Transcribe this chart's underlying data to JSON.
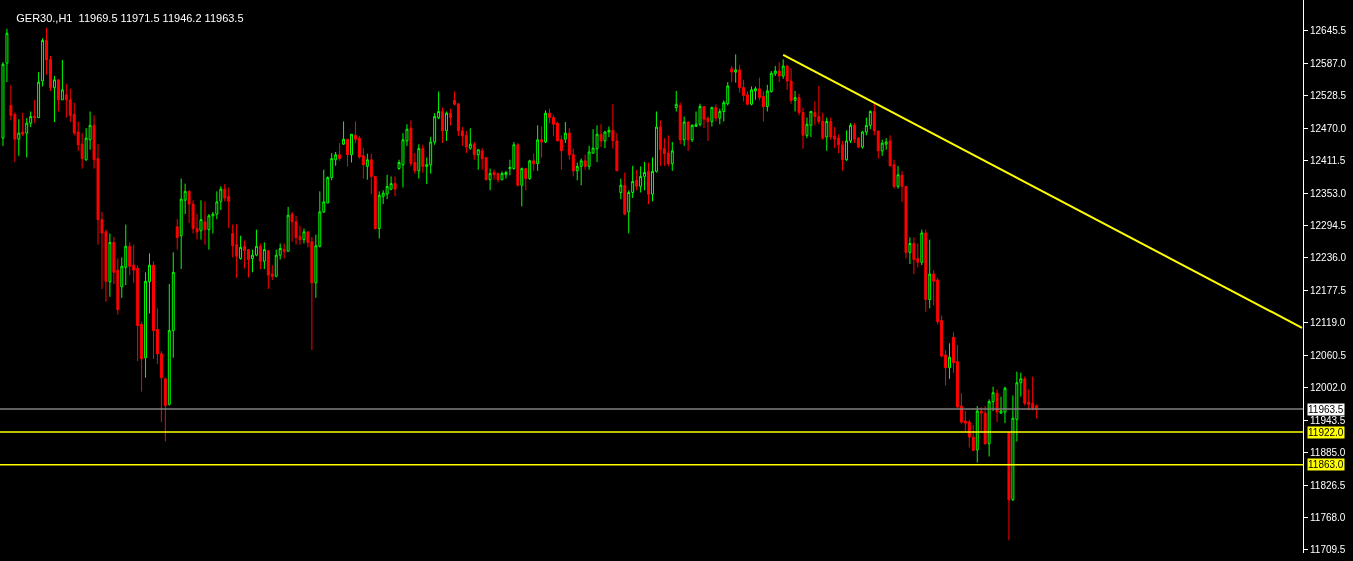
{
  "chart_data": {
    "type": "candlestick",
    "title": "GER30.,H1  11969.5 11971.5 11946.2 11963.5",
    "categories": [
      null,
      null,
      null,
      null,
      null,
      null,
      null,
      null,
      null,
      null,
      null,
      null,
      null,
      null,
      null,
      null,
      null,
      null,
      null,
      null,
      null,
      null,
      null,
      null,
      null,
      null,
      null,
      null,
      null,
      null,
      null,
      null,
      null,
      null,
      null,
      null,
      null,
      null,
      null,
      null,
      null,
      null,
      null,
      null,
      null,
      null,
      null,
      null,
      null,
      null,
      null,
      null,
      null,
      null,
      null,
      null,
      null,
      null,
      null,
      null,
      null,
      null,
      null,
      null,
      null,
      null,
      null,
      null,
      null,
      null,
      null,
      null,
      null,
      null,
      null,
      null,
      null,
      null,
      null,
      null,
      null,
      null,
      null,
      null,
      null,
      null,
      null,
      null,
      null,
      null,
      null,
      null,
      null,
      null,
      null,
      null,
      null,
      null,
      null,
      null,
      null,
      null,
      null,
      null,
      null,
      null,
      null,
      null,
      null,
      null,
      null,
      null,
      null,
      null,
      null,
      null,
      null,
      null,
      null,
      null,
      null,
      null,
      null,
      null,
      null,
      null,
      null,
      null,
      null,
      null,
      null,
      null,
      null,
      null,
      null,
      null,
      null,
      null,
      null,
      null,
      null,
      null,
      null,
      null,
      null,
      null,
      null,
      null,
      null,
      null,
      null,
      null,
      null,
      null,
      null,
      null,
      null,
      null,
      null,
      null,
      null,
      null,
      null,
      null,
      null,
      null,
      null,
      null,
      null,
      null,
      null,
      null,
      null,
      null,
      null,
      null,
      null,
      null,
      null,
      null,
      null,
      null,
      null,
      null,
      null,
      null,
      null,
      null,
      null,
      null,
      null,
      null,
      null,
      null,
      null,
      null,
      null,
      null,
      null,
      null,
      null,
      null,
      null,
      null,
      null,
      null,
      null,
      null,
      null,
      null,
      null,
      null,
      null,
      null,
      null,
      null,
      null,
      null,
      null,
      null,
      null,
      null,
      null,
      null,
      null,
      null,
      null,
      null,
      null,
      null,
      null,
      null,
      null,
      null,
      null,
      null,
      null,
      null,
      null,
      null,
      null,
      null,
      null,
      null,
      null,
      null,
      null,
      null,
      null,
      null,
      null,
      null,
      null,
      null,
      null,
      null,
      null,
      null,
      null,
      null,
      null,
      null,
      null,
      null,
      null,
      null,
      null,
      null,
      null,
      null,
      null,
      null,
      null,
      null,
      null,
      null,
      null,
      null,
      null,
      null,
      null,
      null,
      null,
      null,
      null,
      null,
      null,
      null,
      null,
      null,
      null,
      null,
      null,
      null,
      null,
      null,
      null,
      null,
      null,
      null,
      null,
      null,
      null,
      null,
      null,
      null,
      null,
      null,
      null,
      null,
      null,
      null,
      null,
      null,
      null,
      null,
      null,
      null,
      null,
      null,
      null,
      null,
      null,
      null,
      null,
      null,
      null,
      null,
      null
    ],
    "colors": [
      "#00ff00",
      "#ff0000"
    ],
    "series": [
      {
        "ohlc": [
          [
            12452,
            12589,
            12438,
            12585
          ],
          [
            12587,
            12649,
            12553,
            12641
          ],
          [
            12511,
            12548,
            12484,
            12493
          ],
          [
            12495,
            12498,
            12409,
            12450
          ],
          [
            12450,
            12486,
            12420,
            12461
          ],
          [
            12463,
            12498,
            12456,
            12459
          ],
          [
            12461,
            12488,
            12417,
            12479
          ],
          [
            12479,
            12500,
            12472,
            12491
          ],
          [
            12491,
            12521,
            12479,
            12489
          ],
          [
            12489,
            12571,
            12489,
            12553
          ],
          [
            12555,
            12632,
            12545,
            12628
          ],
          [
            12628,
            12651,
            12566,
            12593
          ],
          [
            12594,
            12600,
            12537,
            12543
          ],
          [
            12543,
            12564,
            12481,
            12557
          ],
          [
            12557,
            12557,
            12500,
            12521
          ],
          [
            12521,
            12593,
            12521,
            12539
          ],
          [
            12530,
            12550,
            12489,
            12521
          ],
          [
            12521,
            12541,
            12481,
            12493
          ],
          [
            12495,
            12516,
            12457,
            12461
          ],
          [
            12463,
            12482,
            12429,
            12440
          ],
          [
            12441,
            12461,
            12397,
            12415
          ],
          [
            12413,
            12470,
            12411,
            12452
          ],
          [
            12449,
            12500,
            12431,
            12475
          ],
          [
            12475,
            12493,
            12397,
            12413
          ],
          [
            12415,
            12441,
            12260,
            12305
          ],
          [
            12305,
            12319,
            12180,
            12281
          ],
          [
            12283,
            12287,
            12157,
            12194
          ],
          [
            12193,
            12280,
            12166,
            12264
          ],
          [
            12264,
            12274,
            12189,
            12210
          ],
          [
            12214,
            12235,
            12134,
            12143
          ],
          [
            12184,
            12237,
            12164,
            12221
          ],
          [
            12219,
            12296,
            12187,
            12257
          ],
          [
            12257,
            12264,
            12205,
            12221
          ],
          [
            12223,
            12260,
            12191,
            12214
          ],
          [
            12217,
            12223,
            12050,
            12114
          ],
          [
            12116,
            12121,
            11995,
            12054
          ],
          [
            12056,
            12210,
            12020,
            12194
          ],
          [
            12193,
            12244,
            12136,
            12223
          ],
          [
            12223,
            12230,
            12054,
            12105
          ],
          [
            12107,
            12145,
            12045,
            12063
          ],
          [
            12063,
            12068,
            11940,
            12020
          ],
          [
            12018,
            12020,
            11905,
            11970
          ],
          [
            11972,
            12189,
            11970,
            12105
          ],
          [
            12105,
            12246,
            12056,
            12210
          ],
          [
            12292,
            12306,
            12251,
            12273
          ],
          [
            12276,
            12379,
            12216,
            12342
          ],
          [
            12340,
            12370,
            12315,
            12356
          ],
          [
            12356,
            12358,
            12299,
            12333
          ],
          [
            12333,
            12340,
            12280,
            12289
          ],
          [
            12289,
            12315,
            12269,
            12283
          ],
          [
            12285,
            12340,
            12269,
            12305
          ],
          [
            12301,
            12338,
            12260,
            12287
          ],
          [
            12287,
            12315,
            12251,
            12312
          ],
          [
            12312,
            12319,
            12280,
            12315
          ],
          [
            12315,
            12356,
            12306,
            12337
          ],
          [
            12338,
            12365,
            12322,
            12360
          ],
          [
            12360,
            12369,
            12338,
            12344
          ],
          [
            12347,
            12363,
            12290,
            12338
          ],
          [
            12280,
            12296,
            12237,
            12258
          ],
          [
            12260,
            12297,
            12200,
            12239
          ],
          [
            12235,
            12276,
            12233,
            12255
          ],
          [
            12257,
            12267,
            12217,
            12249
          ],
          [
            12251,
            12251,
            12201,
            12233
          ],
          [
            12235,
            12251,
            12210,
            12241
          ],
          [
            12241,
            12287,
            12239,
            12257
          ],
          [
            12257,
            12262,
            12216,
            12230
          ],
          [
            12230,
            12264,
            12216,
            12251
          ],
          [
            12249,
            12249,
            12180,
            12205
          ],
          [
            12207,
            12223,
            12196,
            12203
          ],
          [
            12203,
            12251,
            12201,
            12241
          ],
          [
            12241,
            12262,
            12233,
            12253
          ],
          [
            12251,
            12262,
            12235,
            12248
          ],
          [
            12248,
            12328,
            12248,
            12313
          ],
          [
            12315,
            12319,
            12265,
            12301
          ],
          [
            12301,
            12312,
            12260,
            12273
          ],
          [
            12274,
            12294,
            12260,
            12269
          ],
          [
            12269,
            12289,
            12262,
            12283
          ],
          [
            12283,
            12283,
            12255,
            12264
          ],
          [
            12265,
            12274,
            12070,
            12191
          ],
          [
            12191,
            12278,
            12164,
            12258
          ],
          [
            12257,
            12356,
            12255,
            12319
          ],
          [
            12319,
            12395,
            12317,
            12337
          ],
          [
            12335,
            12383,
            12335,
            12381
          ],
          [
            12381,
            12425,
            12376,
            12415
          ],
          [
            12413,
            12427,
            12402,
            12422
          ],
          [
            12422,
            12443,
            12411,
            12415
          ],
          [
            12441,
            12482,
            12440,
            12450
          ],
          [
            12450,
            12450,
            12401,
            12422
          ],
          [
            12422,
            12459,
            12408,
            12459
          ],
          [
            12457,
            12482,
            12443,
            12450
          ],
          [
            12452,
            12456,
            12415,
            12418
          ],
          [
            12420,
            12434,
            12379,
            12404
          ],
          [
            12401,
            12424,
            12377,
            12413
          ],
          [
            12413,
            12424,
            12351,
            12383
          ],
          [
            12383,
            12383,
            12287,
            12289
          ],
          [
            12289,
            12356,
            12271,
            12349
          ],
          [
            12347,
            12358,
            12333,
            12353
          ],
          [
            12351,
            12386,
            12342,
            12365
          ],
          [
            12360,
            12383,
            12358,
            12370
          ],
          [
            12370,
            12383,
            12347,
            12360
          ],
          [
            12397,
            12413,
            12395,
            12408
          ],
          [
            12404,
            12461,
            12363,
            12449
          ],
          [
            12447,
            12477,
            12438,
            12468
          ],
          [
            12470,
            12484,
            12401,
            12406
          ],
          [
            12408,
            12425,
            12388,
            12393
          ],
          [
            12393,
            12441,
            12379,
            12433
          ],
          [
            12433,
            12440,
            12390,
            12401
          ],
          [
            12401,
            12417,
            12369,
            12404
          ],
          [
            12404,
            12454,
            12388,
            12445
          ],
          [
            12445,
            12497,
            12440,
            12491
          ],
          [
            12489,
            12536,
            12486,
            12500
          ],
          [
            12500,
            12507,
            12443,
            12465
          ],
          [
            12465,
            12500,
            12447,
            12497
          ],
          [
            12497,
            12505,
            12475,
            12489
          ],
          [
            12520,
            12536,
            12511,
            12513
          ],
          [
            12514,
            12514,
            12456,
            12465
          ],
          [
            12465,
            12472,
            12438,
            12456
          ],
          [
            12457,
            12465,
            12425,
            12436
          ],
          [
            12434,
            12470,
            12431,
            12441
          ],
          [
            12441,
            12445,
            12413,
            12422
          ],
          [
            12422,
            12431,
            12395,
            12431
          ],
          [
            12429,
            12434,
            12395,
            12415
          ],
          [
            12417,
            12417,
            12376,
            12377
          ],
          [
            12377,
            12397,
            12358,
            12388
          ],
          [
            12390,
            12395,
            12377,
            12386
          ],
          [
            12388,
            12390,
            12372,
            12377
          ],
          [
            12377,
            12392,
            12376,
            12388
          ],
          [
            12386,
            12393,
            12379,
            12390
          ],
          [
            12397,
            12413,
            12385,
            12399
          ],
          [
            12397,
            12445,
            12395,
            12440
          ],
          [
            12440,
            12443,
            12365,
            12367
          ],
          [
            12367,
            12399,
            12329,
            12397
          ],
          [
            12397,
            12397,
            12358,
            12379
          ],
          [
            12379,
            12413,
            12377,
            12411
          ],
          [
            12411,
            12424,
            12393,
            12406
          ],
          [
            12406,
            12475,
            12393,
            12449
          ],
          [
            12449,
            12473,
            12417,
            12445
          ],
          [
            12445,
            12502,
            12443,
            12497
          ],
          [
            12497,
            12505,
            12479,
            12489
          ],
          [
            12489,
            12493,
            12456,
            12477
          ],
          [
            12479,
            12481,
            12447,
            12447
          ],
          [
            12449,
            12457,
            12395,
            12429
          ],
          [
            12450,
            12481,
            12443,
            12461
          ],
          [
            12461,
            12470,
            12413,
            12422
          ],
          [
            12422,
            12433,
            12383,
            12393
          ],
          [
            12393,
            12408,
            12376,
            12401
          ],
          [
            12401,
            12415,
            12367,
            12411
          ],
          [
            12411,
            12422,
            12395,
            12401
          ],
          [
            12401,
            12438,
            12395,
            12427
          ],
          [
            12425,
            12468,
            12424,
            12434
          ],
          [
            12433,
            12475,
            12409,
            12459
          ],
          [
            12459,
            12477,
            12436,
            12447
          ],
          [
            12447,
            12465,
            12434,
            12463
          ],
          [
            12463,
            12473,
            12454,
            12466
          ],
          [
            12466,
            12513,
            12433,
            12447
          ],
          [
            12447,
            12461,
            12393,
            12393
          ],
          [
            12354,
            12379,
            12342,
            12367
          ],
          [
            12367,
            12390,
            12313,
            12315
          ],
          [
            12319,
            12358,
            12280,
            12354
          ],
          [
            12354,
            12402,
            12344,
            12374
          ],
          [
            12376,
            12395,
            12358,
            12365
          ],
          [
            12365,
            12401,
            12354,
            12383
          ],
          [
            12383,
            12409,
            12358,
            12390
          ],
          [
            12392,
            12408,
            12333,
            12351
          ],
          [
            12351,
            12417,
            12338,
            12392
          ],
          [
            12392,
            12500,
            12390,
            12472
          ],
          [
            12472,
            12484,
            12402,
            12431
          ],
          [
            12433,
            12452,
            12402,
            12424
          ],
          [
            12425,
            12457,
            12401,
            12406
          ],
          [
            12406,
            12445,
            12393,
            12429
          ],
          [
            12507,
            12537,
            12500,
            12513
          ],
          [
            12511,
            12516,
            12441,
            12449
          ],
          [
            12449,
            12491,
            12438,
            12481
          ],
          [
            12481,
            12482,
            12429,
            12449
          ],
          [
            12449,
            12477,
            12445,
            12475
          ],
          [
            12473,
            12500,
            12473,
            12477
          ],
          [
            12477,
            12514,
            12473,
            12509
          ],
          [
            12509,
            12509,
            12470,
            12486
          ],
          [
            12488,
            12491,
            12447,
            12482
          ],
          [
            12482,
            12509,
            12473,
            12507
          ],
          [
            12507,
            12513,
            12482,
            12488
          ],
          [
            12488,
            12505,
            12477,
            12500
          ],
          [
            12500,
            12520,
            12482,
            12516
          ],
          [
            12514,
            12553,
            12511,
            12546
          ],
          [
            12577,
            12582,
            12553,
            12571
          ],
          [
            12571,
            12603,
            12552,
            12575
          ],
          [
            12575,
            12584,
            12534,
            12543
          ],
          [
            12543,
            12557,
            12518,
            12529
          ],
          [
            12530,
            12536,
            12511,
            12513
          ],
          [
            12513,
            12545,
            12511,
            12539
          ],
          [
            12537,
            12545,
            12521,
            12541
          ],
          [
            12541,
            12561,
            12520,
            12525
          ],
          [
            12527,
            12536,
            12482,
            12509
          ],
          [
            12509,
            12548,
            12500,
            12537
          ],
          [
            12536,
            12573,
            12534,
            12569
          ],
          [
            12568,
            12582,
            12564,
            12573
          ],
          [
            12573,
            12589,
            12553,
            12564
          ],
          [
            12564,
            12594,
            12559,
            12582
          ],
          [
            12582,
            12584,
            12539,
            12555
          ],
          [
            12555,
            12578,
            12514,
            12520
          ],
          [
            12520,
            12537,
            12500,
            12525
          ],
          [
            12525,
            12532,
            12493,
            12498
          ],
          [
            12498,
            12507,
            12433,
            12457
          ],
          [
            12457,
            12489,
            12452,
            12477
          ],
          [
            12475,
            12500,
            12454,
            12500
          ],
          [
            12498,
            12518,
            12475,
            12491
          ],
          [
            12491,
            12546,
            12477,
            12482
          ],
          [
            12482,
            12498,
            12449,
            12452
          ],
          [
            12454,
            12489,
            12429,
            12482
          ],
          [
            12482,
            12489,
            12449,
            12454
          ],
          [
            12456,
            12472,
            12434,
            12450
          ],
          [
            12452,
            12459,
            12425,
            12440
          ],
          [
            12440,
            12447,
            12393,
            12413
          ],
          [
            12413,
            12466,
            12411,
            12447
          ],
          [
            12447,
            12479,
            12443,
            12475
          ],
          [
            12475,
            12479,
            12443,
            12450
          ],
          [
            12452,
            12454,
            12434,
            12436
          ],
          [
            12436,
            12465,
            12433,
            12463
          ],
          [
            12463,
            12489,
            12457,
            12475
          ],
          [
            12475,
            12502,
            12468,
            12500
          ],
          [
            12500,
            12514,
            12457,
            12465
          ],
          [
            12465,
            12465,
            12415,
            12429
          ],
          [
            12429,
            12449,
            12420,
            12443
          ],
          [
            12441,
            12452,
            12431,
            12445
          ],
          [
            12447,
            12457,
            12401,
            12402
          ],
          [
            12404,
            12413,
            12361,
            12365
          ],
          [
            12365,
            12402,
            12361,
            12386
          ],
          [
            12385,
            12393,
            12337,
            12365
          ],
          [
            12365,
            12365,
            12235,
            12246
          ],
          [
            12246,
            12273,
            12225,
            12262
          ],
          [
            12262,
            12273,
            12207,
            12233
          ],
          [
            12235,
            12262,
            12219,
            12228
          ],
          [
            12228,
            12287,
            12223,
            12281
          ],
          [
            12281,
            12287,
            12139,
            12161
          ],
          [
            12161,
            12269,
            12145,
            12207
          ],
          [
            12207,
            12214,
            12150,
            12194
          ],
          [
            12196,
            12200,
            12116,
            12121
          ],
          [
            12123,
            12132,
            12057,
            12059
          ],
          [
            12061,
            12070,
            12006,
            12038
          ],
          [
            12038,
            12082,
            12018,
            12057
          ],
          [
            12093,
            12102,
            12029,
            12047
          ],
          [
            12049,
            12079,
            11965,
            11967
          ],
          [
            11969,
            11992,
            11937,
            11940
          ],
          [
            11942,
            11960,
            11924,
            11938
          ],
          [
            11940,
            11944,
            11894,
            11913
          ],
          [
            11913,
            11935,
            11889,
            11889
          ],
          [
            11890,
            11969,
            11867,
            11960
          ],
          [
            11960,
            11967,
            11921,
            11956
          ],
          [
            11956,
            11969,
            11899,
            11901
          ],
          [
            11901,
            11981,
            11878,
            11977
          ],
          [
            11977,
            12004,
            11960,
            11993
          ],
          [
            11992,
            11999,
            11940,
            11958
          ],
          [
            11956,
            11986,
            11956,
            11960
          ],
          [
            11958,
            12004,
            11938,
            12001
          ],
          [
            11921,
            11921,
            11727,
            11800
          ],
          [
            11800,
            11988,
            11798,
            11947
          ],
          [
            11945,
            12031,
            11905,
            12011
          ],
          [
            12011,
            12029,
            11986,
            12018
          ],
          [
            12018,
            12022,
            11970,
            11974
          ],
          [
            11976,
            11999,
            11961,
            11972
          ],
          [
            11974,
            12022,
            11961,
            11965
          ],
          [
            11969.5,
            11971.5,
            11946.2,
            11963.5
          ],
          null,
          null,
          null,
          null,
          null,
          null,
          null,
          null,
          null,
          null,
          null,
          null,
          null,
          null,
          null,
          null,
          null,
          null,
          null,
          null,
          null,
          null,
          null,
          null,
          null,
          null,
          null,
          null,
          null,
          null,
          null,
          null,
          null,
          null,
          null,
          null,
          null,
          null,
          null,
          null,
          null,
          null,
          null,
          null,
          null,
          null,
          null,
          null,
          null,
          null,
          null,
          null,
          null,
          null,
          null,
          null,
          null,
          null,
          null,
          null,
          null,
          null,
          null,
          null,
          null,
          null,
          null
        ]
      },
      {
        "type": "line",
        "values": [
          null,
          null,
          null,
          null,
          null,
          null,
          null,
          null,
          null,
          null,
          null,
          null,
          null,
          null,
          null,
          null,
          null,
          null,
          null,
          null,
          null,
          null,
          null,
          null,
          null,
          null,
          null,
          null,
          null,
          null,
          null,
          null,
          null,
          null,
          null,
          null,
          null,
          null,
          null,
          null,
          null,
          null,
          null,
          null,
          null,
          null,
          null,
          null,
          null,
          null,
          null,
          null,
          null,
          null,
          null,
          null,
          null,
          null,
          null,
          null,
          null,
          null,
          null,
          null,
          null,
          null,
          null,
          null,
          null,
          null,
          null,
          null,
          null,
          null,
          null,
          null,
          null,
          null,
          null,
          null,
          null,
          null,
          null,
          null,
          null,
          null,
          null,
          null,
          null,
          null,
          null,
          null,
          null,
          null,
          null,
          null,
          null,
          null,
          null,
          null,
          null,
          null,
          null,
          null,
          null,
          null,
          null,
          null,
          null,
          null,
          null,
          null,
          null,
          null,
          null,
          null,
          null,
          null,
          null,
          null,
          null,
          null,
          null,
          null,
          null,
          null,
          null,
          null,
          null,
          null,
          null,
          null,
          null,
          null,
          null,
          null,
          null,
          null,
          null,
          null,
          null,
          null,
          null,
          null,
          null,
          null,
          null,
          null,
          null,
          null,
          null,
          null,
          null,
          null,
          null,
          null,
          null,
          null,
          null,
          null,
          null,
          null,
          null,
          null,
          null,
          null,
          null,
          null,
          null,
          null,
          null,
          null,
          null,
          null,
          null,
          null,
          null,
          null,
          null,
          null,
          null,
          null,
          null,
          null,
          null,
          null,
          null,
          null,
          null,
          null,
          null,
          null,
          null,
          null,
          null,
          null,
          null,
          12602,
          null,
          null,
          null,
          null,
          null,
          null,
          null,
          null,
          null,
          null,
          null,
          null,
          null,
          null,
          null,
          null,
          null,
          null,
          null,
          null,
          null,
          null,
          null,
          null,
          null,
          null,
          null,
          null,
          null,
          null,
          null,
          null,
          null,
          null,
          null,
          null,
          null,
          null,
          null,
          null,
          null,
          null,
          null,
          null,
          null,
          null,
          null,
          null,
          null,
          null,
          null,
          null,
          null,
          null,
          null,
          null,
          null,
          null,
          null,
          null,
          null,
          null,
          null,
          null,
          null,
          null,
          null,
          null,
          null,
          null,
          null,
          null,
          null,
          null,
          null,
          null,
          null,
          null,
          null,
          null,
          null,
          null,
          null,
          null,
          null,
          null,
          null,
          null,
          null,
          null,
          null,
          null,
          null,
          null,
          null,
          null,
          null,
          null,
          null,
          null,
          null,
          null,
          null,
          null,
          null,
          null,
          null,
          null,
          null,
          null,
          null,
          null,
          null,
          null,
          null,
          null,
          null,
          null,
          null,
          null,
          null,
          null,
          null,
          null,
          null,
          null,
          null,
          null,
          null,
          null,
          12110
        ],
        "color": "#ffff00",
        "line_style": "solid"
      }
    ],
    "ref_lines": [
      {
        "axis": "y",
        "value": 11963.5,
        "label": "11963.5",
        "color": "#808080"
      },
      {
        "axis": "y",
        "value": 11922.0,
        "label": "11922.0",
        "color": "#ffff00"
      },
      {
        "axis": "y",
        "value": 11863.0,
        "label": "11863.0",
        "color": "#ffff00"
      }
    ],
    "ylim": [
      11704,
      12701
    ],
    "yticks": [
      {
        "value": 12645.5,
        "label": "12645.5"
      },
      {
        "value": 12587,
        "label": "12587.0"
      },
      {
        "value": 12528.5,
        "label": "12528.5"
      },
      {
        "value": 12470,
        "label": "12470.0"
      },
      {
        "value": 12411.5,
        "label": "12411.5"
      },
      {
        "value": 12353,
        "label": "12353.0"
      },
      {
        "value": 12294.5,
        "label": "12294.5"
      },
      {
        "value": 12236,
        "label": "12236.0"
      },
      {
        "value": 12177.5,
        "label": "12177.5"
      },
      {
        "value": 12119,
        "label": "12119.0"
      },
      {
        "value": 12060.5,
        "label": "12060.5"
      },
      {
        "value": 12002,
        "label": "12002.0"
      },
      {
        "value": 11943.5,
        "label": "11943.5"
      },
      {
        "value": 11885,
        "label": "11885.0"
      },
      {
        "value": 11826.5,
        "label": "11826.5"
      },
      {
        "value": 11768,
        "label": "11768.0"
      },
      {
        "value": 11709.5,
        "label": "11709.5"
      }
    ],
    "tick_labels": "y",
    "grid": false
  }
}
